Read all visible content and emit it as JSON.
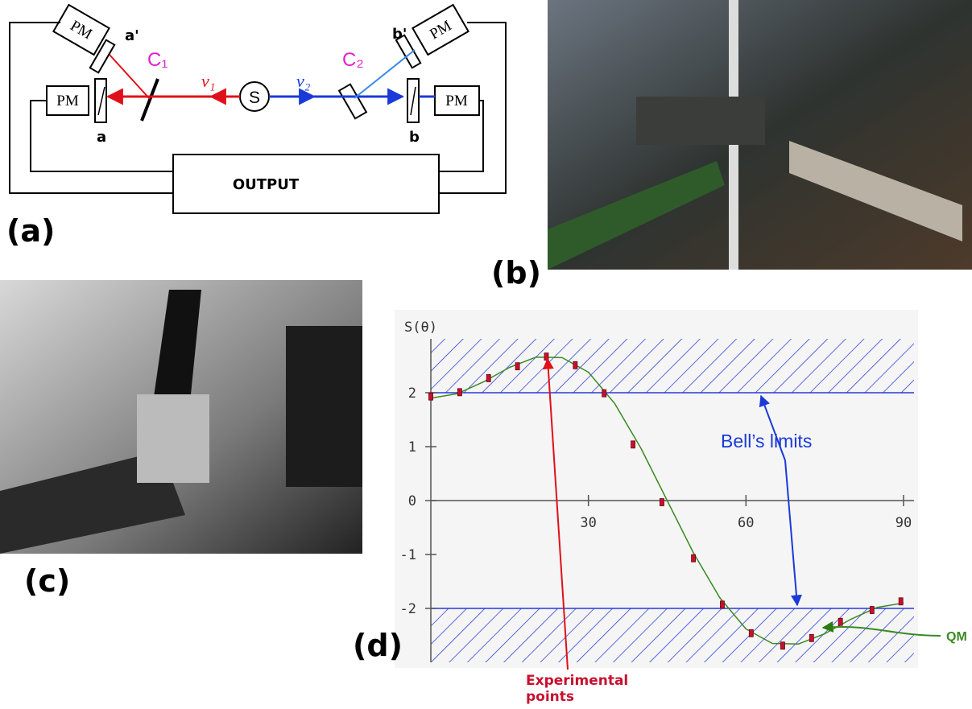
{
  "panel_a": {
    "label": "(a)",
    "pm": [
      "PM",
      "PM",
      "PM",
      "PM"
    ],
    "polarizers": [
      "a'",
      "a",
      "b'",
      "b"
    ],
    "channels": [
      "C₁",
      "C₂"
    ],
    "source": "S",
    "photons": [
      "ν₁",
      "ν₂"
    ],
    "output": "OUTPUT"
  },
  "panel_b": {
    "label": "(b)"
  },
  "panel_c": {
    "label": "(c)"
  },
  "panel_d": {
    "label": "(d)"
  },
  "chart_data": {
    "type": "line",
    "ylabel": "S(θ)",
    "xlim": [
      0,
      92
    ],
    "xticks": [
      30,
      60,
      90
    ],
    "ylim": [
      -3,
      3
    ],
    "yticks": [
      -2,
      -1,
      0,
      1,
      2
    ],
    "bell_limits": [
      -2,
      2
    ],
    "annotations": {
      "bell": "Bell’s limits"
    },
    "series": [
      {
        "name": "QM",
        "color": "#3a8a22",
        "x": [
          0,
          5,
          10,
          15,
          20,
          25,
          30,
          35,
          40,
          45,
          50,
          55,
          60,
          65,
          70,
          75,
          80,
          85,
          90
        ],
        "values": [
          1.9,
          1.98,
          2.2,
          2.47,
          2.66,
          2.65,
          2.38,
          1.8,
          0.97,
          0,
          -0.97,
          -1.8,
          -2.38,
          -2.65,
          -2.66,
          -2.47,
          -2.2,
          -1.98,
          -1.9
        ]
      },
      {
        "name": "Experimental points",
        "color": "#c8102e",
        "x": [
          0,
          5.5,
          11,
          16.5,
          22,
          27.5,
          33,
          38.5,
          44,
          50,
          55.5,
          61,
          67,
          72.5,
          78,
          84,
          89.5
        ],
        "values": [
          1.93,
          2.01,
          2.27,
          2.49,
          2.67,
          2.51,
          1.99,
          1.04,
          -0.03,
          -1.07,
          -1.93,
          -2.46,
          -2.69,
          -2.55,
          -2.25,
          -2.03,
          -1.87
        ]
      }
    ]
  }
}
